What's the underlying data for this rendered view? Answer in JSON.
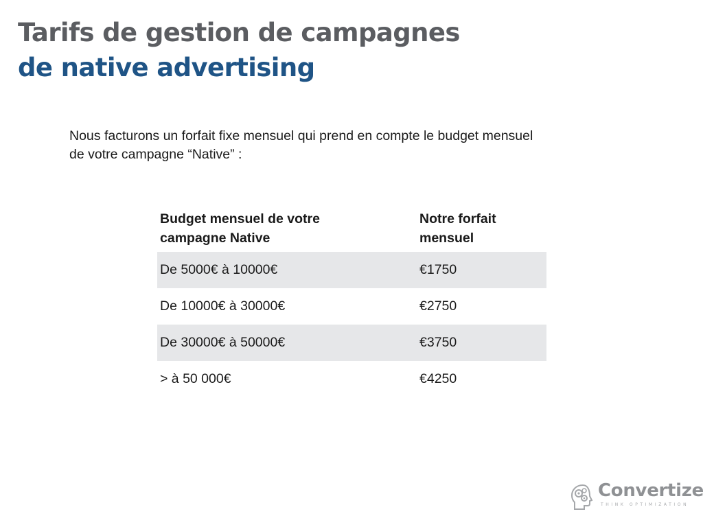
{
  "slide": {
    "title_line1": "Tarifs de gestion de campagnes",
    "title_line2": "de native advertising",
    "intro_line1": "Nous facturons un forfait fixe mensuel qui prend en compte le budget mensuel",
    "intro_line2": "de votre campagne “Native” :"
  },
  "table": {
    "headers": {
      "col1_line1": "Budget mensuel de votre",
      "col1_line2": "campagne Native",
      "col2_line1": "Notre forfait",
      "col2_line2": "mensuel"
    },
    "rows": [
      {
        "budget": "De 5000€ à 10000€",
        "fee": "€1750"
      },
      {
        "budget": "De 10000€ à 30000€",
        "fee": "€2750"
      },
      {
        "budget": "De 30000€ à 50000€",
        "fee": "€3750"
      },
      {
        "budget": "> à 50 000€",
        "fee": "€4250"
      }
    ],
    "shade_color": "#e6e7e9"
  },
  "logo": {
    "name": "Convertize",
    "tagline": "THINK OPTIMIZATION",
    "icon": "head-gears-icon",
    "color": "#8f9194"
  },
  "colors": {
    "title_gray": "#5b5d61",
    "title_blue": "#1f5486"
  }
}
